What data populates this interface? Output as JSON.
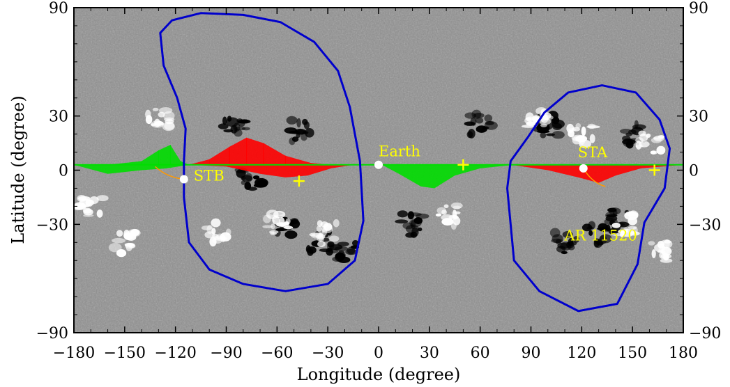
{
  "chart_data": {
    "type": "scatter",
    "title": "",
    "xlabel": "Longitude (degree)",
    "ylabel": "Latitude (degree)",
    "xlim": [
      -180,
      180
    ],
    "ylim": [
      -90,
      90
    ],
    "xticks": [
      -180,
      -150,
      -120,
      -90,
      -60,
      -30,
      0,
      30,
      60,
      90,
      120,
      150,
      180
    ],
    "yticks": [
      -90,
      -30,
      0,
      30,
      90
    ],
    "xtick_labels": [
      "−180",
      "−150",
      "−120",
      "−90",
      "−60",
      "−30",
      "0",
      "30",
      "60",
      "90",
      "120",
      "150",
      "180"
    ],
    "ytick_labels": [
      "−90",
      "−30",
      "0",
      "30",
      "90"
    ],
    "grid": false,
    "background": "grayscale photospheric magnetogram (white/black flux patches)",
    "colors": {
      "negative_polarity_field": "#ff0000",
      "positive_polarity_field": "#00dd00",
      "contour": "#0000cc",
      "annotation": "#ffff00",
      "orbit_trace": "#ff9900"
    },
    "markers": [
      {
        "label": "Earth",
        "x": 0,
        "y": 3,
        "symbol": "filled-circle",
        "color": "#ffffff"
      },
      {
        "label": "STB",
        "x": -115,
        "y": -5,
        "symbol": "filled-circle",
        "color": "#ffffff"
      },
      {
        "label": "STA",
        "x": 121,
        "y": 1,
        "symbol": "filled-circle",
        "color": "#ffffff"
      }
    ],
    "plus_markers": [
      {
        "x": -47,
        "y": -6
      },
      {
        "x": 50,
        "y": 3
      },
      {
        "x": 163,
        "y": 0
      }
    ],
    "annotations": [
      {
        "text": "AR 11520",
        "x": 120,
        "y": -35
      }
    ],
    "contours": [
      {
        "name": "left-contour",
        "points": [
          [
            -122,
            83
          ],
          [
            -105,
            87
          ],
          [
            -80,
            86
          ],
          [
            -58,
            82
          ],
          [
            -38,
            71
          ],
          [
            -24,
            55
          ],
          [
            -17,
            35
          ],
          [
            -11,
            5
          ],
          [
            -9,
            -28
          ],
          [
            -14,
            -50
          ],
          [
            -30,
            -63
          ],
          [
            -55,
            -67
          ],
          [
            -80,
            -63
          ],
          [
            -100,
            -55
          ],
          [
            -112,
            -40
          ],
          [
            -115,
            -15
          ],
          [
            -115,
            5
          ],
          [
            -114,
            23
          ],
          [
            -119,
            40
          ],
          [
            -127,
            58
          ],
          [
            -129,
            76
          ]
        ]
      },
      {
        "name": "right-contour",
        "points": [
          [
            88,
            18
          ],
          [
            98,
            32
          ],
          [
            112,
            43
          ],
          [
            132,
            47
          ],
          [
            152,
            43
          ],
          [
            166,
            28
          ],
          [
            172,
            12
          ],
          [
            169,
            -10
          ],
          [
            157,
            -29
          ],
          [
            153,
            -52
          ],
          [
            141,
            -74
          ],
          [
            118,
            -78
          ],
          [
            95,
            -67
          ],
          [
            80,
            -50
          ],
          [
            76,
            -10
          ],
          [
            78,
            5
          ]
        ]
      }
    ],
    "current_sheet_regions": [
      {
        "name": "red-lobe-left",
        "color": "#ff0000",
        "upper": [
          [
            -112,
            3
          ],
          [
            -100,
            6
          ],
          [
            -88,
            13
          ],
          [
            -78,
            18
          ],
          [
            -68,
            15
          ],
          [
            -55,
            8
          ],
          [
            -40,
            4
          ],
          [
            -28,
            3
          ],
          [
            -15,
            3
          ]
        ],
        "lower": [
          [
            -112,
            3
          ],
          [
            -90,
            2
          ],
          [
            -70,
            -2
          ],
          [
            -55,
            -4
          ],
          [
            -42,
            -3
          ],
          [
            -28,
            1
          ],
          [
            -15,
            3
          ]
        ]
      },
      {
        "name": "green-lobe-left",
        "color": "#00dd00",
        "upper": [
          [
            -180,
            3
          ],
          [
            -160,
            3
          ],
          [
            -140,
            5
          ],
          [
            -130,
            11
          ],
          [
            -123,
            14
          ],
          [
            -117,
            5
          ],
          [
            -112,
            3
          ]
        ],
        "lower": [
          [
            -180,
            3
          ],
          [
            -160,
            -2
          ],
          [
            -140,
            0
          ],
          [
            -125,
            1
          ],
          [
            -112,
            3
          ]
        ]
      },
      {
        "name": "green-lobe-center",
        "color": "#00dd00",
        "upper": [
          [
            2,
            3
          ],
          [
            30,
            3
          ],
          [
            60,
            3
          ],
          [
            80,
            3
          ]
        ],
        "lower": [
          [
            2,
            3
          ],
          [
            12,
            -2
          ],
          [
            25,
            -9
          ],
          [
            33,
            -10
          ],
          [
            45,
            -3
          ],
          [
            60,
            1
          ],
          [
            80,
            3
          ]
        ]
      },
      {
        "name": "red-lobe-right",
        "color": "#ff0000",
        "upper": [
          [
            78,
            3
          ],
          [
            110,
            3
          ],
          [
            140,
            3
          ],
          [
            170,
            3
          ],
          [
            180,
            3
          ]
        ],
        "lower": [
          [
            78,
            3
          ],
          [
            100,
            0
          ],
          [
            118,
            -4
          ],
          [
            130,
            -7
          ],
          [
            140,
            -3
          ],
          [
            155,
            1
          ],
          [
            180,
            3
          ]
        ]
      }
    ]
  }
}
